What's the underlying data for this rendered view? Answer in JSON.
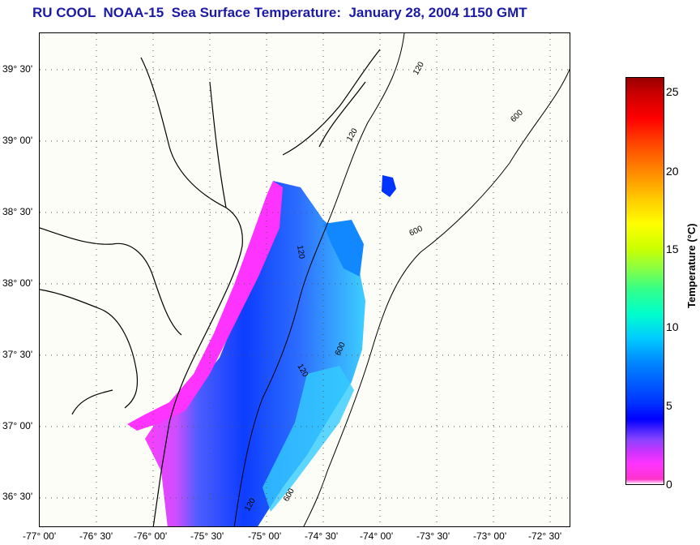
{
  "header": {
    "title": "RU COOL  NOAA-15  Sea Surface Temperature:  January 28, 2004 1150 GMT"
  },
  "map": {
    "latitude_labels": [
      "39° 30'",
      "39° 00'",
      "38° 30'",
      "38° 00'",
      "37° 30'",
      "37° 00'",
      "36° 30'"
    ],
    "longitude_labels": [
      "-77° 00'",
      "-76° 30'",
      "-76° 00'",
      "-75° 30'",
      "-75° 00'",
      "-74° 30'",
      "-74° 00'",
      "-73° 30'",
      "-73° 00'",
      "-72° 30'"
    ],
    "contour_labels": [
      "120",
      "600"
    ],
    "colors": {
      "coast": "#000000",
      "grid": "#555555",
      "sst_cold": "#ff33ff",
      "sst_mid": "#0033ff",
      "sst_warm": "#00ccff"
    }
  },
  "colorbar": {
    "title": "Temperature (°C)",
    "ticks": [
      "25",
      "20",
      "15",
      "10",
      "5",
      "0"
    ],
    "range": [
      0,
      26
    ]
  }
}
